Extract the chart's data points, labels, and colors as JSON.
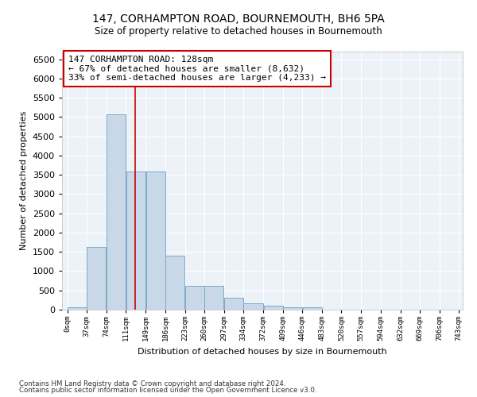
{
  "title": "147, CORHAMPTON ROAD, BOURNEMOUTH, BH6 5PA",
  "subtitle": "Size of property relative to detached houses in Bournemouth",
  "xlabel": "Distribution of detached houses by size in Bournemouth",
  "ylabel": "Number of detached properties",
  "footnote1": "Contains HM Land Registry data © Crown copyright and database right 2024.",
  "footnote2": "Contains public sector information licensed under the Open Government Licence v3.0.",
  "bar_edges": [
    0,
    37,
    74,
    111,
    149,
    186,
    223,
    260,
    297,
    334,
    372,
    409,
    446,
    483,
    520,
    557,
    594,
    632,
    669,
    706,
    743
  ],
  "bar_heights": [
    70,
    1630,
    5070,
    3590,
    3590,
    1400,
    610,
    610,
    300,
    155,
    100,
    70,
    70,
    0,
    0,
    0,
    0,
    0,
    0,
    0
  ],
  "bar_color": "#c8d8e8",
  "bar_edge_color": "#7aaac8",
  "property_line_x": 128,
  "property_line_color": "#cc0000",
  "annotation_text": "147 CORHAMPTON ROAD: 128sqm\n← 67% of detached houses are smaller (8,632)\n33% of semi-detached houses are larger (4,233) →",
  "annotation_box_color": "#ffffff",
  "annotation_box_edge": "#cc0000",
  "ylim": [
    0,
    6700
  ],
  "yticks": [
    0,
    500,
    1000,
    1500,
    2000,
    2500,
    3000,
    3500,
    4000,
    4500,
    5000,
    5500,
    6000,
    6500
  ],
  "background_color": "#edf2f8",
  "grid_color": "#ffffff",
  "tick_labels": [
    "0sqm",
    "37sqm",
    "74sqm",
    "111sqm",
    "149sqm",
    "186sqm",
    "223sqm",
    "260sqm",
    "297sqm",
    "334sqm",
    "372sqm",
    "409sqm",
    "446sqm",
    "483sqm",
    "520sqm",
    "557sqm",
    "594sqm",
    "632sqm",
    "669sqm",
    "706sqm",
    "743sqm"
  ]
}
